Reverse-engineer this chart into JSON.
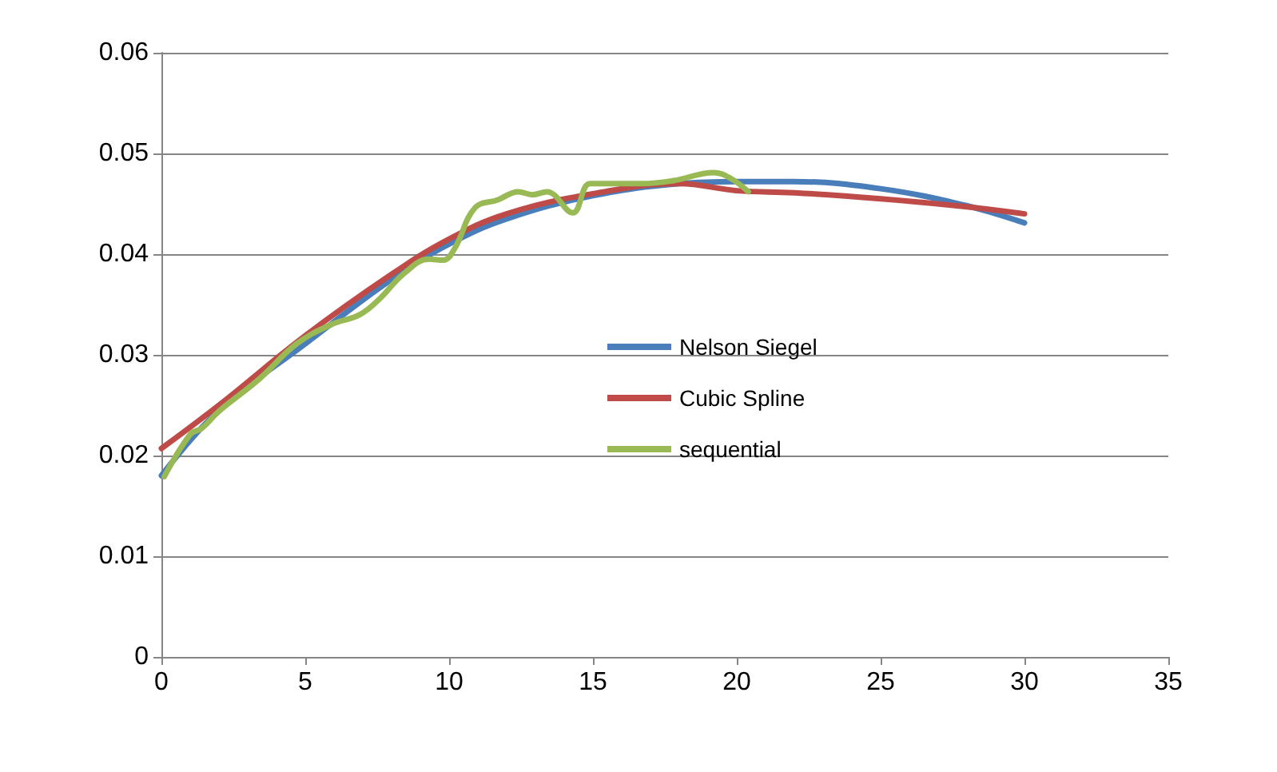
{
  "chart_data": {
    "type": "line",
    "xlim": [
      0,
      35
    ],
    "xticks": [
      0,
      5,
      10,
      15,
      20,
      25,
      30,
      35
    ],
    "ylim": [
      0,
      0.06
    ],
    "yticks": [
      0,
      0.01,
      0.02,
      0.03,
      0.04,
      0.05,
      0.06
    ],
    "grid": "y",
    "legend": "center",
    "marker": "none",
    "line_style": "solid",
    "series": [
      {
        "name": "Nelson Siegel",
        "color": "#4a7ebb",
        "x": [
          0,
          2,
          5,
          8,
          10,
          12,
          15,
          18,
          20,
          22,
          25,
          28,
          30
        ],
        "values": [
          0.018,
          0.0245,
          0.0311,
          0.0375,
          0.041,
          0.0435,
          0.0458,
          0.047,
          0.0472,
          0.0472,
          0.0465,
          0.0448,
          0.0431
        ]
      },
      {
        "name": "Cubic Spline",
        "color": "#be4b48",
        "x": [
          0,
          2,
          5,
          8,
          10,
          12,
          15,
          18,
          20,
          22,
          25,
          28,
          30
        ],
        "values": [
          0.0207,
          0.025,
          0.0319,
          0.038,
          0.0415,
          0.044,
          0.046,
          0.047,
          0.0463,
          0.0461,
          0.0455,
          0.0447,
          0.044
        ]
      },
      {
        "name": "sequential",
        "color": "#98b954",
        "x": [
          0.1,
          1,
          1.4,
          2,
          3.4,
          4.7,
          5.9,
          6.9,
          7.6,
          8.4,
          9.3,
          9.8,
          10.2,
          10.9,
          11.7,
          12.4,
          12.9,
          13.4,
          14.3,
          14.9,
          15.8,
          16.7,
          17.8,
          19.2,
          19.8,
          20.4
        ],
        "values": [
          0.0179,
          0.0221,
          0.0227,
          0.0244,
          0.0276,
          0.0311,
          0.033,
          0.034,
          0.0356,
          0.038,
          0.0395,
          0.0394,
          0.0406,
          0.0446,
          0.0454,
          0.0462,
          0.0459,
          0.0462,
          0.0441,
          0.047,
          0.047,
          0.047,
          0.0473,
          0.0481,
          0.0475,
          0.0462
        ]
      }
    ]
  }
}
